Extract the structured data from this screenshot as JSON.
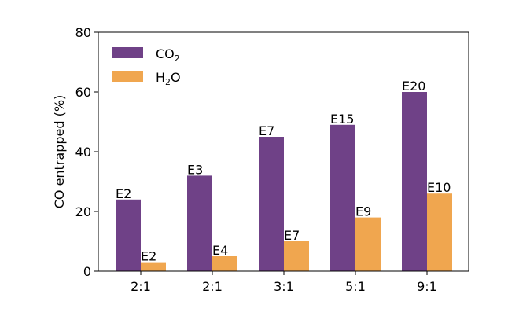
{
  "chart_data": {
    "type": "bar",
    "categories": [
      "2:1",
      "2:1",
      "3:1",
      "5:1",
      "9:1"
    ],
    "series": [
      {
        "name": "CO2",
        "legend_base": "CO",
        "legend_sub": "2",
        "color": "#6f4187",
        "values": [
          24,
          32,
          45,
          49,
          60
        ],
        "labels": [
          "E2",
          "E3",
          "E7",
          "E15",
          "E20"
        ]
      },
      {
        "name": "H2O",
        "legend_base": "H",
        "legend_sub": "2",
        "legend_tail": "O",
        "color": "#f0a64f",
        "values": [
          3,
          5,
          10,
          18,
          26
        ],
        "labels": [
          "E2",
          "E4",
          "E7",
          "E9",
          "E10"
        ]
      }
    ],
    "ylabel": "CO entrapped (%)",
    "xlabel": "",
    "ylim": [
      0,
      80
    ],
    "yticks": [
      0,
      20,
      40,
      60,
      80
    ],
    "grid": false,
    "legend_position": "top-left"
  }
}
